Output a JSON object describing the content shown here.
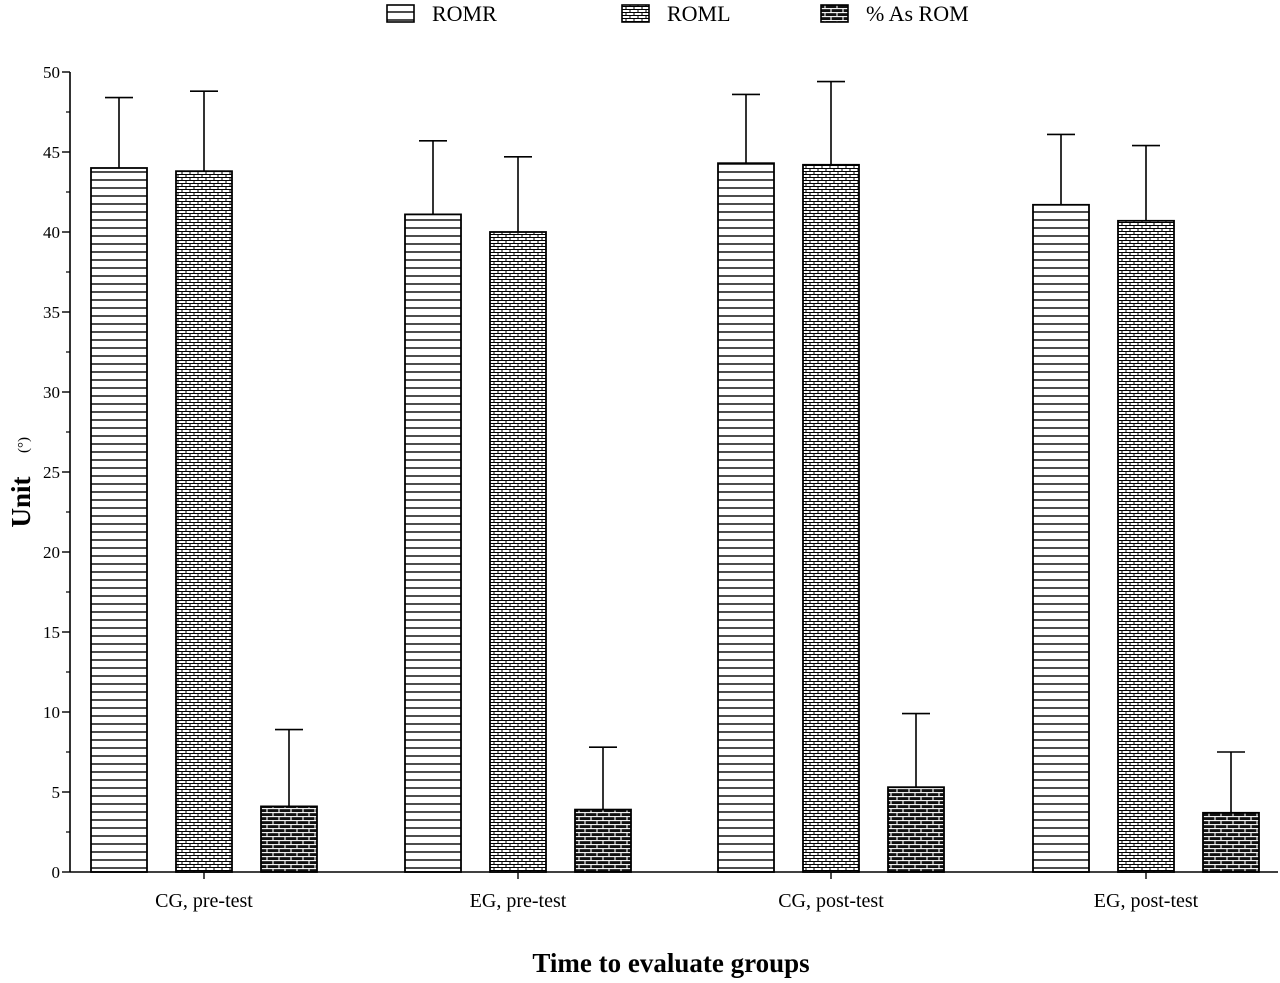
{
  "chart_data": {
    "type": "bar",
    "title": "",
    "xlabel": "Time to evaluate groups",
    "ylabel": "Unit",
    "ylabel_unit": "(°)",
    "ylim": [
      0,
      50
    ],
    "yticks": [
      0,
      5,
      10,
      15,
      20,
      25,
      30,
      35,
      40,
      45,
      50
    ],
    "categories": [
      "CG, pre-test",
      "EG, pre-test",
      "CG, post-test",
      "EG, post-test"
    ],
    "series": [
      {
        "name": "ROMR",
        "pattern": "horizontal-lines",
        "values": [
          44.0,
          41.1,
          44.3,
          41.7
        ],
        "errors": [
          4.4,
          4.6,
          4.3,
          4.4
        ]
      },
      {
        "name": "ROML",
        "pattern": "small-brick-light",
        "values": [
          43.8,
          40.0,
          44.2,
          40.7
        ],
        "errors": [
          5.0,
          4.7,
          5.2,
          4.7
        ]
      },
      {
        "name": "% As ROM",
        "pattern": "brick-dark",
        "values": [
          4.1,
          3.9,
          5.3,
          3.7
        ],
        "errors": [
          4.8,
          3.9,
          4.6,
          3.8
        ]
      }
    ],
    "legend_position": "top",
    "grid": false
  }
}
